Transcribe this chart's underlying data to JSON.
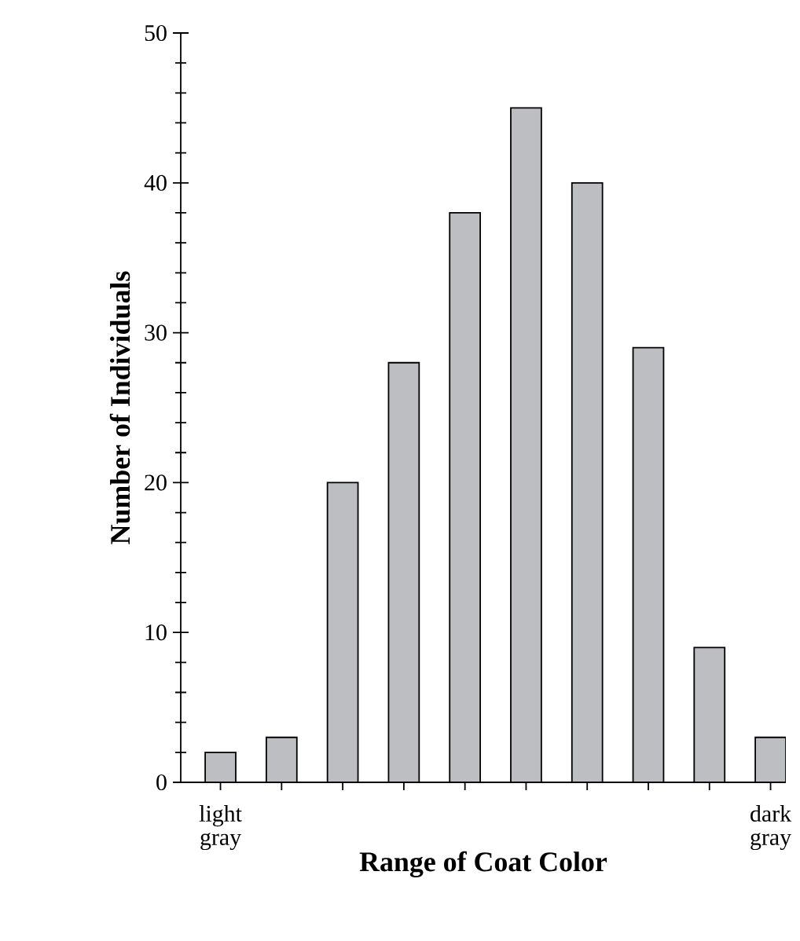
{
  "chart_data": {
    "type": "bar",
    "xlabel": "Range of Coat Color",
    "ylabel": "Number of Individuals",
    "categories": [
      "light gray",
      null,
      null,
      null,
      null,
      null,
      null,
      null,
      null,
      "dark gray"
    ],
    "values": [
      2,
      3,
      20,
      28,
      38,
      45,
      40,
      29,
      9,
      3
    ],
    "color": "#bdbec2",
    "ylim": [
      0,
      50
    ],
    "yticks": [
      0,
      10,
      20,
      30,
      40,
      50
    ]
  }
}
